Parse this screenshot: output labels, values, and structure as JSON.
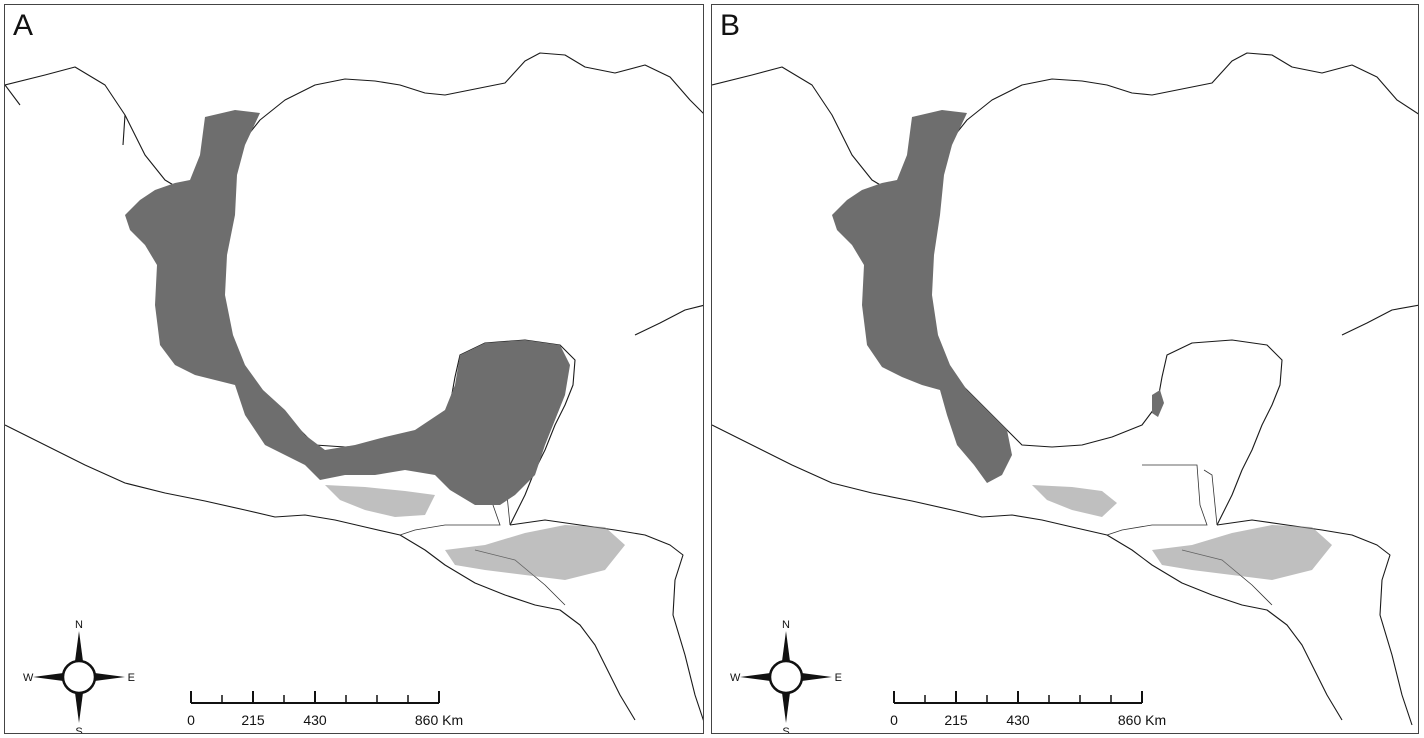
{
  "panels": [
    {
      "letter": "A",
      "compass": {
        "n": "N",
        "s": "S",
        "e": "E",
        "w": "W"
      },
      "scale": {
        "ticks": [
          "0",
          "215",
          "430",
          "860 Km"
        ]
      }
    },
    {
      "letter": "B",
      "compass": {
        "n": "N",
        "s": "S",
        "e": "E",
        "w": "W"
      },
      "scale": {
        "ticks": [
          "0",
          "215",
          "430",
          "860 Km"
        ]
      }
    }
  ],
  "colors": {
    "distribution": "#6e6e6e",
    "coastline": "#1a1a1a",
    "background": "#ffffff"
  }
}
